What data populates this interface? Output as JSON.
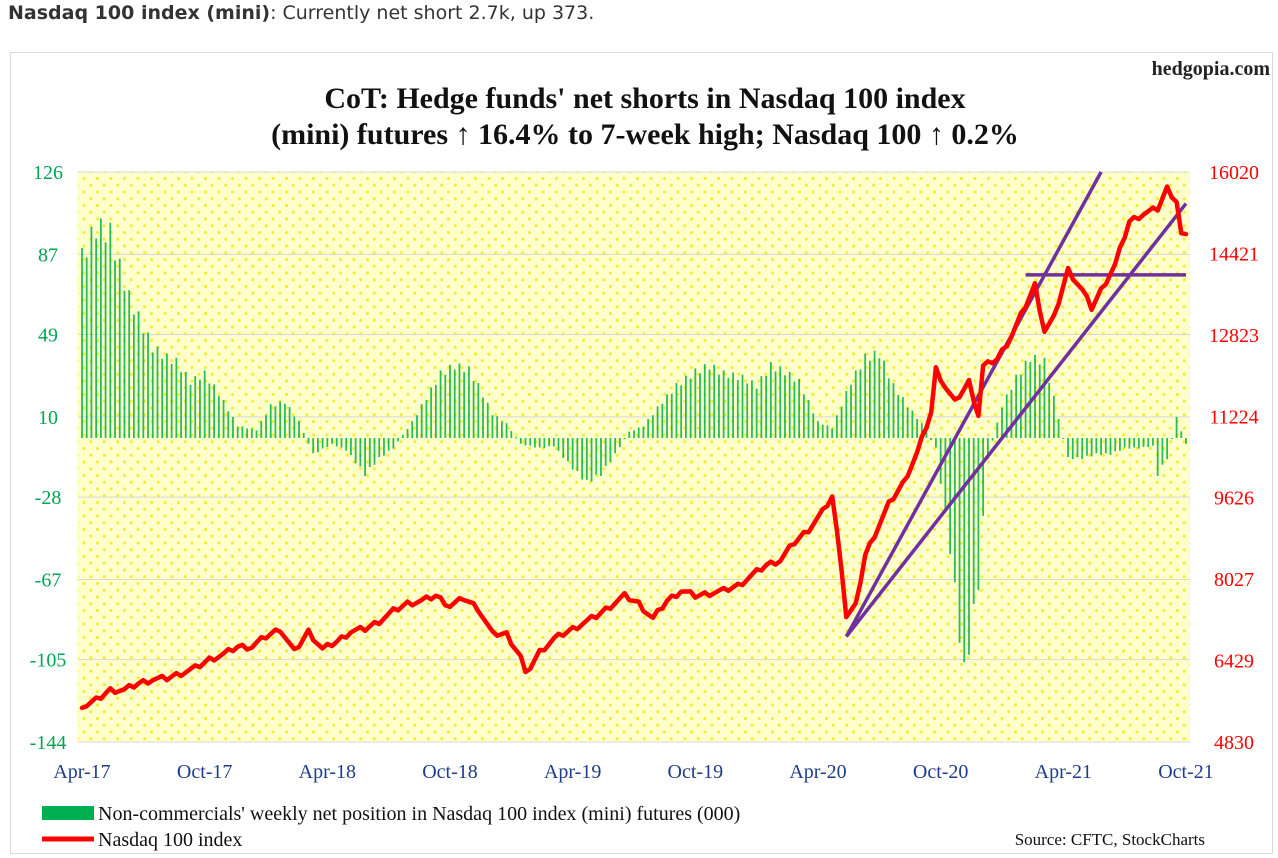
{
  "caption": {
    "bold": "Nasdaq 100 index (mini)",
    "rest": ": Currently net short 2.7k, up 373."
  },
  "chart_data": {
    "type": "bar+line",
    "watermark": "hedgopia.com",
    "title_line1": "CoT: Hedge funds' net shorts in Nasdaq 100 index",
    "title_line2": "(mini) futures ↑ 16.4% to 7-week high; Nasdaq 100 ↑ 0.2%",
    "source": "Source: CFTC, StockCharts",
    "x_ticks": [
      "Apr-17",
      "Oct-17",
      "Apr-18",
      "Oct-18",
      "Apr-19",
      "Oct-19",
      "Apr-20",
      "Oct-20",
      "Apr-21",
      "Oct-21"
    ],
    "left_axis": {
      "ticks": [
        126,
        87,
        49,
        10,
        -28,
        -67,
        -105,
        -144
      ],
      "min": -144,
      "max": 126,
      "color": "#00a651"
    },
    "right_axis": {
      "ticks": [
        16020,
        14421,
        12823,
        11224,
        9626,
        8027,
        6429,
        4830
      ],
      "min": 4830,
      "max": 16020,
      "color": "#ff0000"
    },
    "legend": [
      {
        "label": "Non-commercials' weekly net position in Nasdaq 100 index (mini) futures (000)",
        "color": "#00b050",
        "kind": "bar"
      },
      {
        "label": "Nasdaq 100 index",
        "color": "#ff0000",
        "kind": "line"
      }
    ],
    "bars_series": {
      "name": "Non-commercials' weekly net position in Nasdaq 100 index (mini) futures (000)",
      "anchors": [
        [
          0,
          90
        ],
        [
          3,
          105
        ],
        [
          6,
          102
        ],
        [
          8,
          85
        ],
        [
          10,
          70
        ],
        [
          12,
          60
        ],
        [
          15,
          45
        ],
        [
          18,
          40
        ],
        [
          20,
          38
        ],
        [
          23,
          28
        ],
        [
          26,
          32
        ],
        [
          29,
          22
        ],
        [
          33,
          6
        ],
        [
          37,
          4
        ],
        [
          40,
          16
        ],
        [
          43,
          18
        ],
        [
          46,
          8
        ],
        [
          49,
          -8
        ],
        [
          53,
          -3
        ],
        [
          56,
          -6
        ],
        [
          60,
          -18
        ],
        [
          63,
          -10
        ],
        [
          66,
          -5
        ],
        [
          70,
          8
        ],
        [
          73,
          20
        ],
        [
          76,
          32
        ],
        [
          79,
          36
        ],
        [
          82,
          34
        ],
        [
          84,
          26
        ],
        [
          87,
          12
        ],
        [
          90,
          7
        ],
        [
          93,
          -3
        ],
        [
          97,
          -5
        ],
        [
          100,
          -4
        ],
        [
          104,
          -15
        ],
        [
          107,
          -22
        ],
        [
          110,
          -18
        ],
        [
          113,
          -8
        ],
        [
          116,
          3
        ],
        [
          119,
          6
        ],
        [
          123,
          18
        ],
        [
          126,
          26
        ],
        [
          130,
          33
        ],
        [
          133,
          36
        ],
        [
          136,
          32
        ],
        [
          140,
          30
        ],
        [
          143,
          26
        ],
        [
          146,
          36
        ],
        [
          149,
          33
        ],
        [
          152,
          28
        ],
        [
          156,
          8
        ],
        [
          159,
          5
        ],
        [
          163,
          28
        ],
        [
          166,
          40
        ],
        [
          169,
          42
        ],
        [
          172,
          26
        ],
        [
          175,
          16
        ],
        [
          178,
          7
        ],
        [
          181,
          -5
        ],
        [
          184,
          -55
        ],
        [
          187,
          -118
        ],
        [
          190,
          -72
        ],
        [
          192,
          -10
        ],
        [
          195,
          16
        ],
        [
          198,
          30
        ],
        [
          201,
          40
        ],
        [
          204,
          38
        ],
        [
          206,
          20
        ],
        [
          209,
          -10
        ],
        [
          212,
          -10
        ],
        [
          215,
          -8
        ],
        [
          218,
          -8
        ],
        [
          221,
          -5
        ],
        [
          224,
          -5
        ],
        [
          227,
          -4
        ],
        [
          228,
          -18
        ],
        [
          230,
          -10
        ],
        [
          232,
          10
        ],
        [
          234,
          -3
        ]
      ],
      "last_value": -2.7
    },
    "line_series": {
      "name": "Nasdaq 100 index",
      "anchors": [
        [
          0,
          5500
        ],
        [
          3,
          5650
        ],
        [
          6,
          5850
        ],
        [
          9,
          5850
        ],
        [
          12,
          5980
        ],
        [
          15,
          6060
        ],
        [
          18,
          6080
        ],
        [
          21,
          6180
        ],
        [
          24,
          6280
        ],
        [
          27,
          6450
        ],
        [
          30,
          6550
        ],
        [
          33,
          6700
        ],
        [
          36,
          6700
        ],
        [
          39,
          6900
        ],
        [
          42,
          7050
        ],
        [
          45,
          6600
        ],
        [
          48,
          7000
        ],
        [
          51,
          6650
        ],
        [
          54,
          6800
        ],
        [
          57,
          7000
        ],
        [
          60,
          7050
        ],
        [
          63,
          7200
        ],
        [
          66,
          7400
        ],
        [
          69,
          7550
        ],
        [
          72,
          7600
        ],
        [
          75,
          7700
        ],
        [
          78,
          7500
        ],
        [
          81,
          7650
        ],
        [
          84,
          7450
        ],
        [
          87,
          6950
        ],
        [
          90,
          6950
        ],
        [
          93,
          6500
        ],
        [
          94,
          6150
        ],
        [
          97,
          6600
        ],
        [
          100,
          6850
        ],
        [
          103,
          7000
        ],
        [
          106,
          7150
        ],
        [
          109,
          7300
        ],
        [
          112,
          7500
        ],
        [
          115,
          7700
        ],
        [
          118,
          7550
        ],
        [
          121,
          7250
        ],
        [
          124,
          7600
        ],
        [
          127,
          7800
        ],
        [
          130,
          7700
        ],
        [
          133,
          7750
        ],
        [
          136,
          7800
        ],
        [
          139,
          7900
        ],
        [
          142,
          8100
        ],
        [
          145,
          8300
        ],
        [
          148,
          8400
        ],
        [
          151,
          8750
        ],
        [
          154,
          9000
        ],
        [
          157,
          9350
        ],
        [
          159,
          9650
        ],
        [
          161,
          8250
        ],
        [
          162,
          7300
        ],
        [
          164,
          7500
        ],
        [
          166,
          8500
        ],
        [
          168,
          8900
        ],
        [
          171,
          9500
        ],
        [
          174,
          9900
        ],
        [
          177,
          10500
        ],
        [
          180,
          11300
        ],
        [
          181,
          12150
        ],
        [
          183,
          11800
        ],
        [
          185,
          11500
        ],
        [
          188,
          11900
        ],
        [
          190,
          11250
        ],
        [
          191,
          12200
        ],
        [
          194,
          12350
        ],
        [
          197,
          12800
        ],
        [
          200,
          13400
        ],
        [
          202,
          13800
        ],
        [
          204,
          12900
        ],
        [
          206,
          13150
        ],
        [
          209,
          14100
        ],
        [
          212,
          13700
        ],
        [
          214,
          13350
        ],
        [
          216,
          13700
        ],
        [
          219,
          14200
        ],
        [
          222,
          15050
        ],
        [
          225,
          15200
        ],
        [
          228,
          15300
        ],
        [
          230,
          15700
        ],
        [
          232,
          15450
        ],
        [
          233,
          14800
        ],
        [
          234,
          14800
        ]
      ]
    },
    "trendlines_note": "Three purple trend lines: two rising from the Mar-2020 low and one horizontal support near 14,000",
    "line_color": "#ff0000",
    "trend_color": "#7030a0",
    "bar_color": "#00b050",
    "background_color": "#ffffcc",
    "dot_color": "#ffff00"
  }
}
